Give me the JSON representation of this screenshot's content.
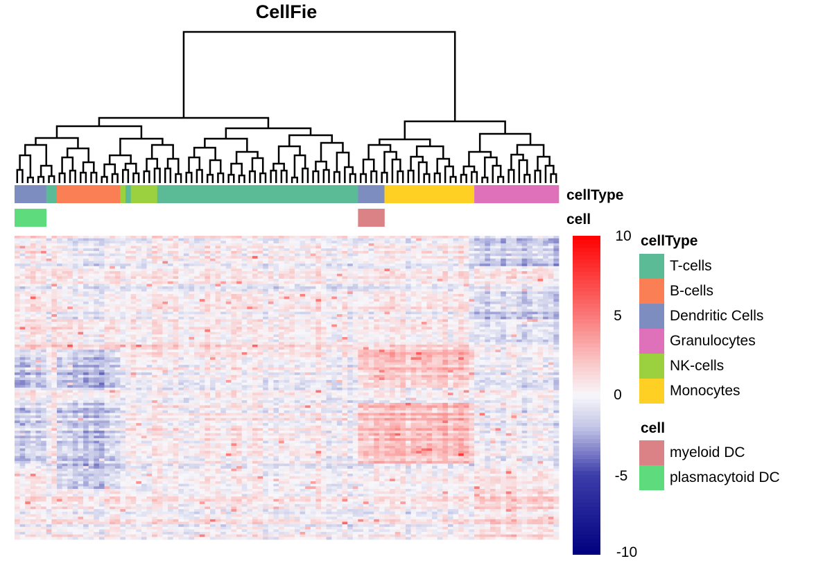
{
  "chart_data": {
    "type": "heatmap",
    "title": "CellFie",
    "annotation_tracks": [
      "cellType",
      "cell"
    ],
    "column_groups": [
      {
        "cellType": "Dendritic Cells",
        "cell": "plasmacytoid DC",
        "columns": 6
      },
      {
        "cellType": "T-cells",
        "cell": "",
        "columns": 2
      },
      {
        "cellType": "B-cells",
        "cell": "",
        "columns": 12
      },
      {
        "cellType": "NK-cells",
        "cell": "",
        "columns": 1
      },
      {
        "cellType": "T-cells",
        "cell": "",
        "columns": 1
      },
      {
        "cellType": "NK-cells",
        "cell": "",
        "columns": 5
      },
      {
        "cellType": "T-cells",
        "cell": "",
        "columns": 38
      },
      {
        "cellType": "Dendritic Cells",
        "cell": "myeloid DC",
        "columns": 5
      },
      {
        "cellType": "Monocytes",
        "cell": "",
        "columns": 17
      },
      {
        "cellType": "Granulocytes",
        "cell": "",
        "columns": 16
      }
    ],
    "rows": 120,
    "row_blocks": [
      {
        "rows": [
          0,
          12
        ],
        "pattern": "mixed, Granulocytes negative"
      },
      {
        "rows": [
          12,
          22
        ],
        "pattern": "mixed"
      },
      {
        "rows": [
          22,
          33
        ],
        "pattern": "mixed, Granulocytes negative"
      },
      {
        "rows": [
          33,
          45
        ],
        "pattern": "weak positive"
      },
      {
        "rows": [
          45,
          60
        ],
        "pattern": "DC/B negative, myeloid+Monocytes positive"
      },
      {
        "rows": [
          60,
          66
        ],
        "pattern": "mixed"
      },
      {
        "rows": [
          66,
          90
        ],
        "pattern": "DC/B negative, myeloid+Monocytes positive"
      },
      {
        "rows": [
          90,
          100
        ],
        "pattern": "B-cells negative"
      },
      {
        "rows": [
          100,
          120
        ],
        "pattern": "mixed, Granulocytes positive"
      }
    ],
    "colorbar": {
      "ticks": [
        "10",
        "5",
        "0",
        "-5",
        "-10"
      ],
      "tick_values": [
        10,
        5,
        0,
        -5,
        -10
      ],
      "range": [
        -10,
        10
      ],
      "colors": {
        "low": "#00007f",
        "mid": "#f7f7fb",
        "high": "#ff0000"
      }
    },
    "dendrogram": "column clustering dendrogram (hierarchical)"
  },
  "legends": {
    "cellType": {
      "title": "cellType",
      "items": [
        {
          "label": "T-cells",
          "color": "#5bbb96"
        },
        {
          "label": "B-cells",
          "color": "#fb7f55"
        },
        {
          "label": "Dendritic Cells",
          "color": "#7d8dbf"
        },
        {
          "label": "Granulocytes",
          "color": "#df71bb"
        },
        {
          "label": "NK-cells",
          "color": "#9bd03e"
        },
        {
          "label": "Monocytes",
          "color": "#fed024"
        }
      ]
    },
    "cell": {
      "title": "cell",
      "items": [
        {
          "label": "myeloid DC",
          "color": "#da8285"
        },
        {
          "label": "plasmacytoid DC",
          "color": "#5edc7d"
        }
      ]
    }
  }
}
